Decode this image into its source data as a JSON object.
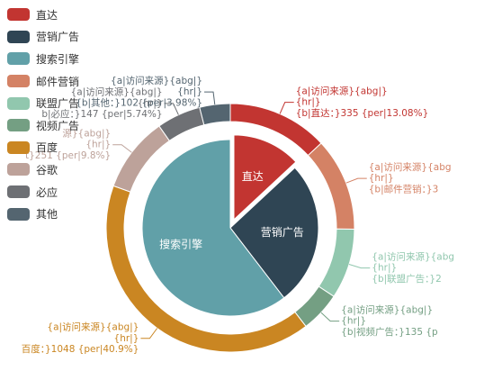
{
  "chart_data": {
    "type": "pie",
    "series": [
      {
        "kind": "inner-pie",
        "slices": [
          {
            "name": "直达",
            "value": 335,
            "color": "#c23531",
            "label": "直达",
            "offset": true
          },
          {
            "name": "营销广告",
            "value": 679,
            "color": "#2f4554",
            "label": "营销广告"
          },
          {
            "name": "搜索引擎",
            "value": 1548,
            "color": "#61a0a8",
            "label": "搜索引擎"
          }
        ]
      },
      {
        "kind": "outer-ring",
        "slices": [
          {
            "name": "直达",
            "value": 335,
            "percent": "13.08%",
            "color": "#c23531",
            "label_lines": [
              "{a|访问来源}{abg|}",
              "{hr|}",
              "{b|直达：}335 {per|13.08%}"
            ]
          },
          {
            "name": "邮件营销",
            "value": 310,
            "color": "#d48265",
            "label_lines": [
              "{a|访问来源}{abg",
              "{hr|}",
              "{b|邮件营销：}3"
            ]
          },
          {
            "name": "联盟广告",
            "value": 234,
            "color": "#91c7ae",
            "label_lines": [
              "{a|访问来源}{abg",
              "{hr|}",
              "{b|联盟广告：}2"
            ]
          },
          {
            "name": "视频广告",
            "value": 135,
            "color": "#749f83",
            "label_lines": [
              "{a|访问来源}{abg|}",
              "{hr|}",
              "{b|视频广告：}135 {p"
            ]
          },
          {
            "name": "百度",
            "value": 1048,
            "percent": "40.9%",
            "color": "#ca8622",
            "label_lines": [
              "{a|访问来源}{abg|}",
              "{hr|}",
              "百度：}1048 {per|40.9%}"
            ]
          },
          {
            "name": "谷歌",
            "value": 251,
            "percent": "9.8%",
            "color": "#bda29a",
            "label_lines": [
              "源}{abg|}",
              "{hr|}",
              "t}251 {per|9.8%}"
            ]
          },
          {
            "name": "必应",
            "value": 147,
            "percent": "5.74%",
            "color": "#6e7074",
            "label_lines": [
              "{a|访问来源}{abg|}",
              "{hr|}",
              "b|必应：}147 {per|5.74%}"
            ]
          },
          {
            "name": "其他",
            "value": 102,
            "percent": "3.98%",
            "color": "#546570",
            "label_lines": [
              "{a|访问来源}{abg|}",
              "{hr|}",
              "{b|其他：}102 {per|3.98%}"
            ]
          }
        ]
      }
    ],
    "legend": {
      "position": "top-left",
      "orient": "vertical",
      "items": [
        {
          "name": "直达",
          "color": "#c23531"
        },
        {
          "name": "营销广告",
          "color": "#2f4554"
        },
        {
          "name": "搜索引擎",
          "color": "#61a0a8"
        },
        {
          "name": "邮件营销",
          "color": "#d48265"
        },
        {
          "name": "联盟广告",
          "color": "#91c7ae"
        },
        {
          "name": "视频广告",
          "color": "#749f83"
        },
        {
          "name": "百度",
          "color": "#ca8622"
        },
        {
          "name": "谷歌",
          "color": "#bda29a"
        },
        {
          "name": "必应",
          "color": "#6e7074"
        },
        {
          "name": "其他",
          "color": "#546570"
        }
      ]
    }
  }
}
